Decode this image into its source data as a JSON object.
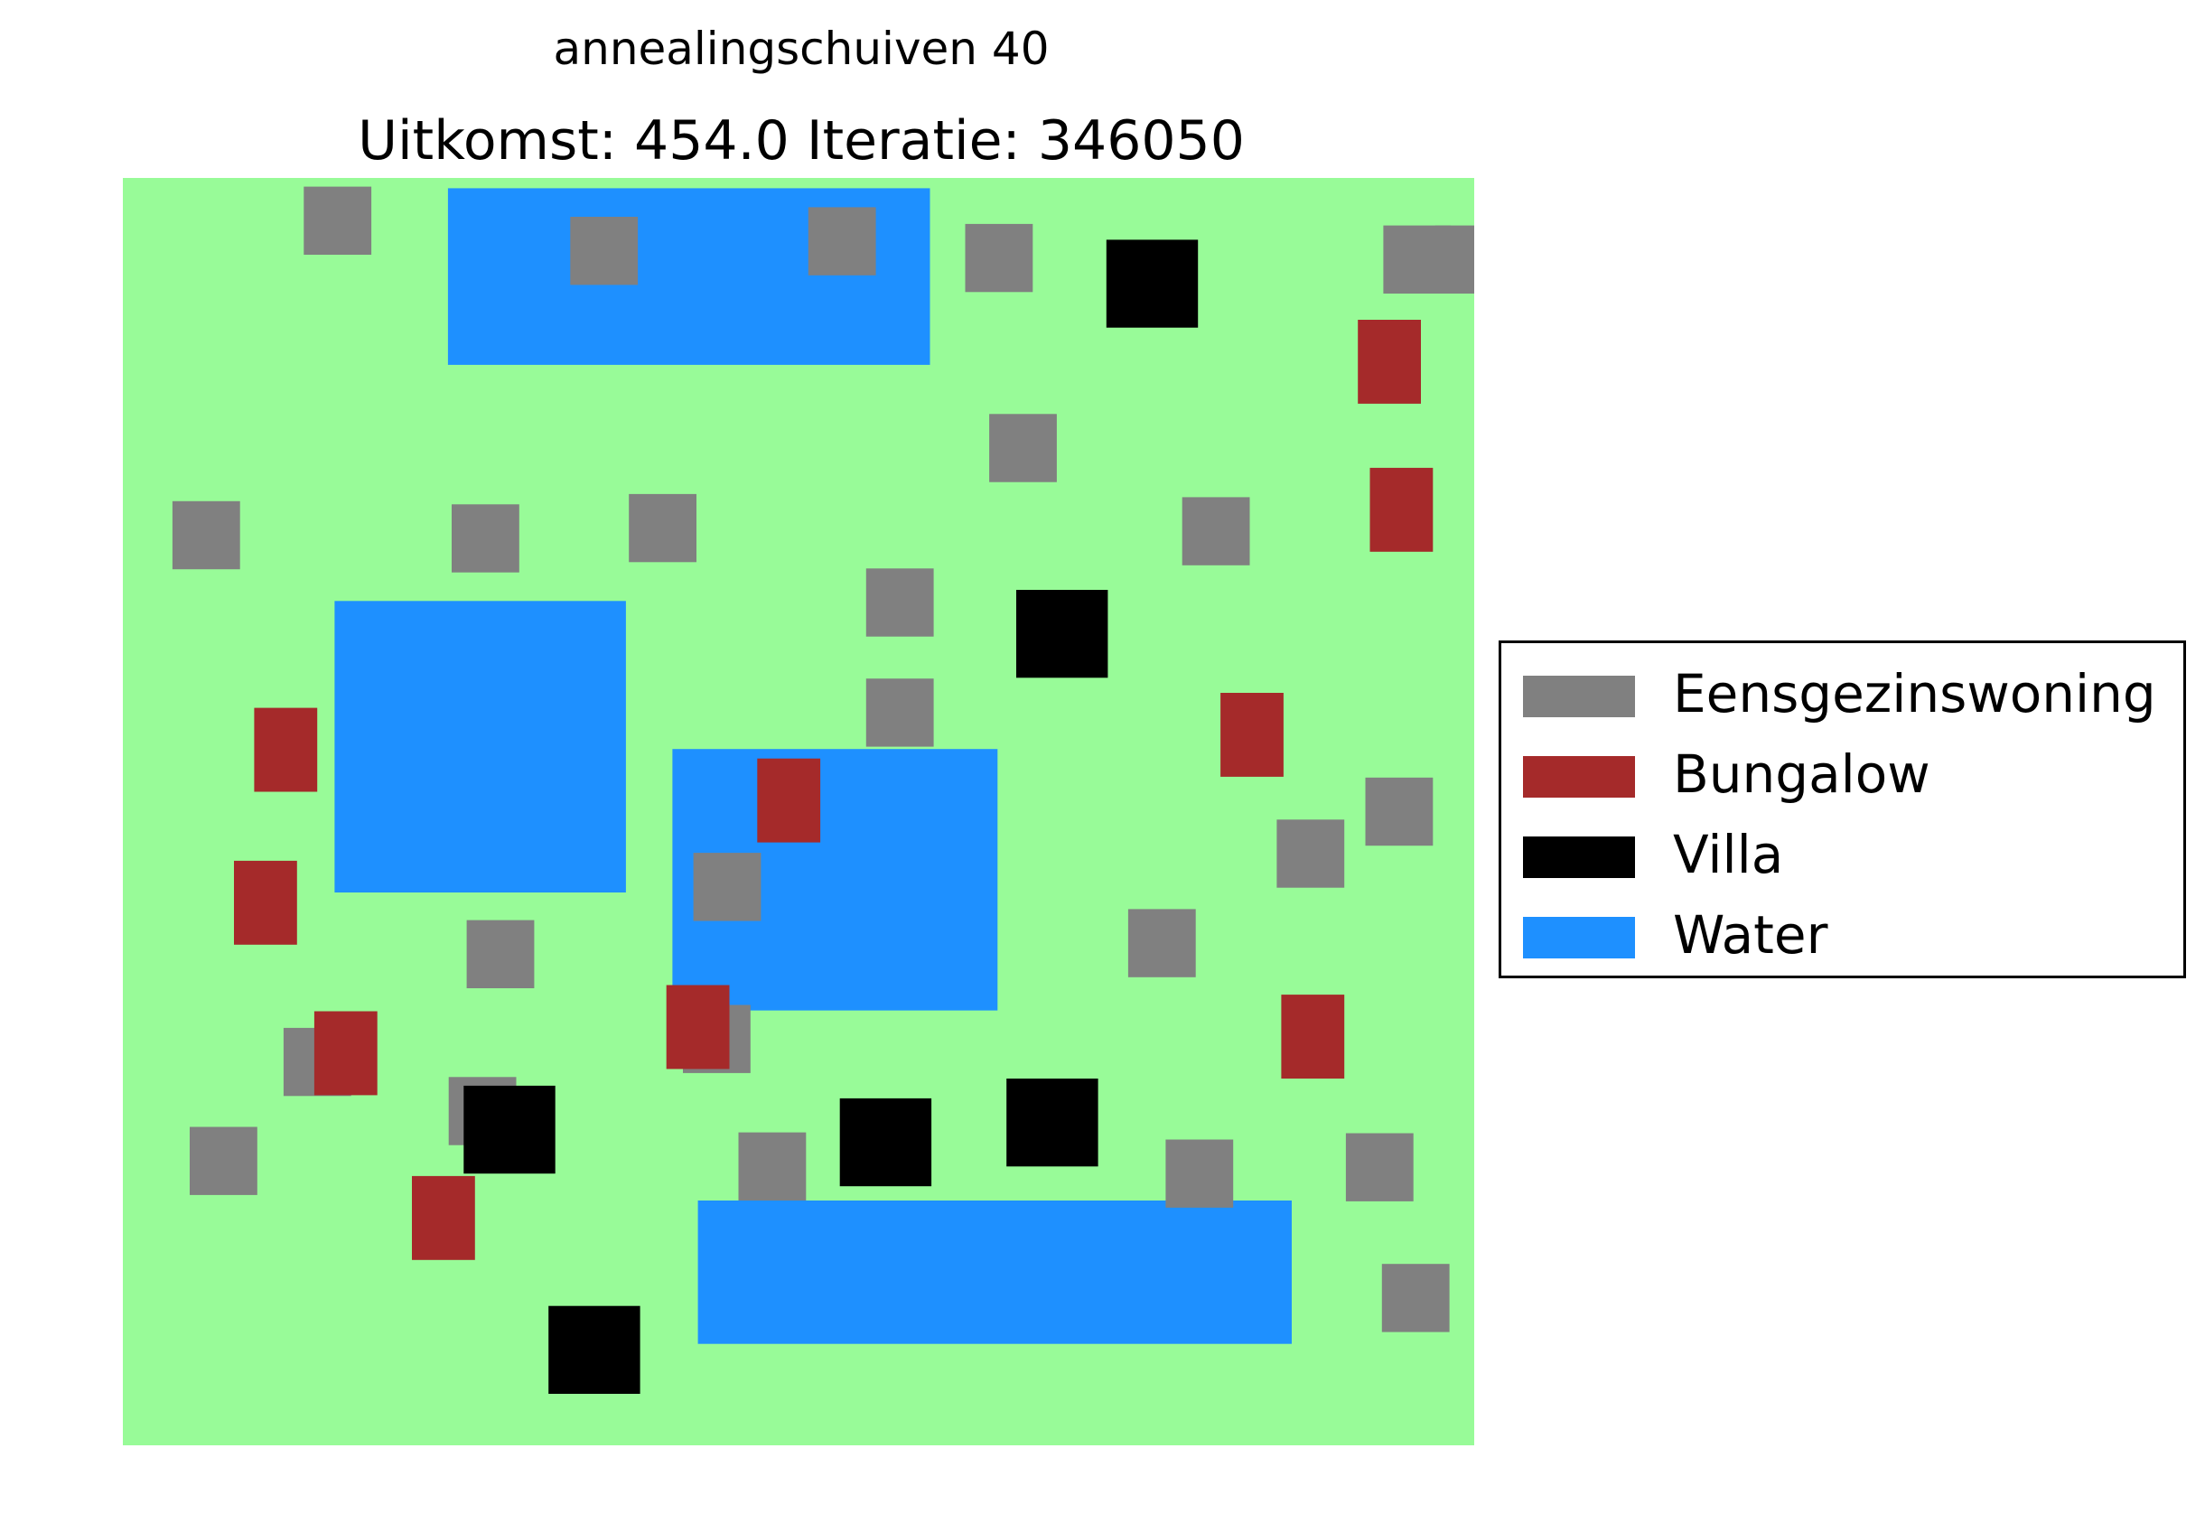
{
  "suptitle": "annealingschuiven 40",
  "title": "Uitkomst: 454.0 Iteratie: 346050",
  "colors": {
    "ground": "#98fb98",
    "Eensgezinswoning": "#808080",
    "Bungalow": "#a52a2a",
    "Villa": "#000000",
    "Water": "#1e90ff"
  },
  "legend": [
    {
      "label": "Eensgezinswoning",
      "type": "Eensgezinswoning"
    },
    {
      "label": "Bungalow",
      "type": "Bungalow"
    },
    {
      "label": "Villa",
      "type": "Villa"
    },
    {
      "label": "Water",
      "type": "Water"
    }
  ],
  "map": {
    "width": 180,
    "height": 160,
    "items": [
      {
        "type": "Water",
        "x": 43.3,
        "y": 136.4,
        "w": 64.2,
        "h": 22.3
      },
      {
        "type": "Water",
        "x": 28.2,
        "y": 69.8,
        "w": 38.8,
        "h": 36.8
      },
      {
        "type": "Water",
        "x": 73.2,
        "y": 54.9,
        "w": 43.3,
        "h": 33.0
      },
      {
        "type": "Water",
        "x": 76.6,
        "y": 12.8,
        "w": 79.1,
        "h": 18.1
      },
      {
        "type": "Eensgezinswoning",
        "x": 24.1,
        "y": 150.3,
        "w": 9.0,
        "h": 8.6
      },
      {
        "type": "Eensgezinswoning",
        "x": 59.6,
        "y": 146.5,
        "w": 9.0,
        "h": 8.6
      },
      {
        "type": "Eensgezinswoning",
        "x": 91.3,
        "y": 147.7,
        "w": 9.0,
        "h": 8.6
      },
      {
        "type": "Eensgezinswoning",
        "x": 112.2,
        "y": 145.6,
        "w": 9.0,
        "h": 8.6
      },
      {
        "type": "Eensgezinswoning",
        "x": 167.9,
        "y": 145.4,
        "w": 9.0,
        "h": 8.6
      },
      {
        "type": "Eensgezinswoning",
        "x": 115.4,
        "y": 121.6,
        "w": 9.0,
        "h": 8.6
      },
      {
        "type": "Eensgezinswoning",
        "x": 6.6,
        "y": 110.6,
        "w": 9.0,
        "h": 8.6
      },
      {
        "type": "Eensgezinswoning",
        "x": 43.8,
        "y": 110.2,
        "w": 9.0,
        "h": 8.6
      },
      {
        "type": "Eensgezinswoning",
        "x": 67.4,
        "y": 111.5,
        "w": 9.0,
        "h": 8.6
      },
      {
        "type": "Eensgezinswoning",
        "x": 99.0,
        "y": 102.1,
        "w": 9.0,
        "h": 8.6
      },
      {
        "type": "Eensgezinswoning",
        "x": 99.0,
        "y": 88.2,
        "w": 9.0,
        "h": 8.6
      },
      {
        "type": "Eensgezinswoning",
        "x": 141.1,
        "y": 111.1,
        "w": 9.0,
        "h": 8.6
      },
      {
        "type": "Eensgezinswoning",
        "x": 165.5,
        "y": 75.7,
        "w": 9.0,
        "h": 8.6
      },
      {
        "type": "Eensgezinswoning",
        "x": 153.7,
        "y": 70.4,
        "w": 9.0,
        "h": 8.6
      },
      {
        "type": "Eensgezinswoning",
        "x": 76.0,
        "y": 66.2,
        "w": 9.0,
        "h": 8.6
      },
      {
        "type": "Eensgezinswoning",
        "x": 133.9,
        "y": 59.1,
        "w": 9.0,
        "h": 8.6
      },
      {
        "type": "Eensgezinswoning",
        "x": 45.8,
        "y": 57.7,
        "w": 9.0,
        "h": 8.6
      },
      {
        "type": "Eensgezinswoning",
        "x": 74.6,
        "y": 47.0,
        "w": 9.0,
        "h": 8.6
      },
      {
        "type": "Eensgezinswoning",
        "x": 21.4,
        "y": 44.1,
        "w": 9.0,
        "h": 8.6
      },
      {
        "type": "Eensgezinswoning",
        "x": 8.9,
        "y": 31.6,
        "w": 9.0,
        "h": 8.6
      },
      {
        "type": "Eensgezinswoning",
        "x": 43.4,
        "y": 37.9,
        "w": 9.0,
        "h": 8.6
      },
      {
        "type": "Eensgezinswoning",
        "x": 82.0,
        "y": 30.9,
        "w": 9.0,
        "h": 8.6
      },
      {
        "type": "Eensgezinswoning",
        "x": 138.9,
        "y": 30.0,
        "w": 9.0,
        "h": 8.6
      },
      {
        "type": "Eensgezinswoning",
        "x": 167.7,
        "y": 14.3,
        "w": 9.0,
        "h": 8.6
      },
      {
        "type": "Eensgezinswoning",
        "x": 162.9,
        "y": 30.8,
        "w": 9.0,
        "h": 8.6
      },
      {
        "type": "Eensgezinswoning",
        "x": 174.8,
        "y": 145.4,
        "w": 9.0,
        "h": 8.6
      },
      {
        "type": "Bungalow",
        "x": 17.5,
        "y": 82.5,
        "w": 8.4,
        "h": 10.6
      },
      {
        "type": "Bungalow",
        "x": 14.8,
        "y": 63.2,
        "w": 8.4,
        "h": 10.6
      },
      {
        "type": "Bungalow",
        "x": 84.5,
        "y": 76.1,
        "w": 8.4,
        "h": 10.6
      },
      {
        "type": "Bungalow",
        "x": 146.2,
        "y": 84.4,
        "w": 8.4,
        "h": 10.6
      },
      {
        "type": "Bungalow",
        "x": 164.5,
        "y": 131.5,
        "w": 8.4,
        "h": 10.6
      },
      {
        "type": "Bungalow",
        "x": 166.1,
        "y": 112.8,
        "w": 8.4,
        "h": 10.6
      },
      {
        "type": "Bungalow",
        "x": 25.5,
        "y": 44.2,
        "w": 8.4,
        "h": 10.6
      },
      {
        "type": "Bungalow",
        "x": 72.4,
        "y": 47.5,
        "w": 8.4,
        "h": 10.6
      },
      {
        "type": "Bungalow",
        "x": 154.3,
        "y": 46.3,
        "w": 8.4,
        "h": 10.6
      },
      {
        "type": "Bungalow",
        "x": 38.5,
        "y": 23.4,
        "w": 8.4,
        "h": 10.6
      },
      {
        "type": "Villa",
        "x": 131.0,
        "y": 141.1,
        "w": 12.2,
        "h": 11.1
      },
      {
        "type": "Villa",
        "x": 119.0,
        "y": 96.9,
        "w": 12.2,
        "h": 11.1
      },
      {
        "type": "Villa",
        "x": 45.4,
        "y": 34.3,
        "w": 12.2,
        "h": 11.1
      },
      {
        "type": "Villa",
        "x": 95.5,
        "y": 32.7,
        "w": 12.2,
        "h": 11.1
      },
      {
        "type": "Villa",
        "x": 117.7,
        "y": 35.2,
        "w": 12.2,
        "h": 11.1
      },
      {
        "type": "Villa",
        "x": 56.7,
        "y": 6.5,
        "w": 12.2,
        "h": 11.1
      }
    ]
  }
}
